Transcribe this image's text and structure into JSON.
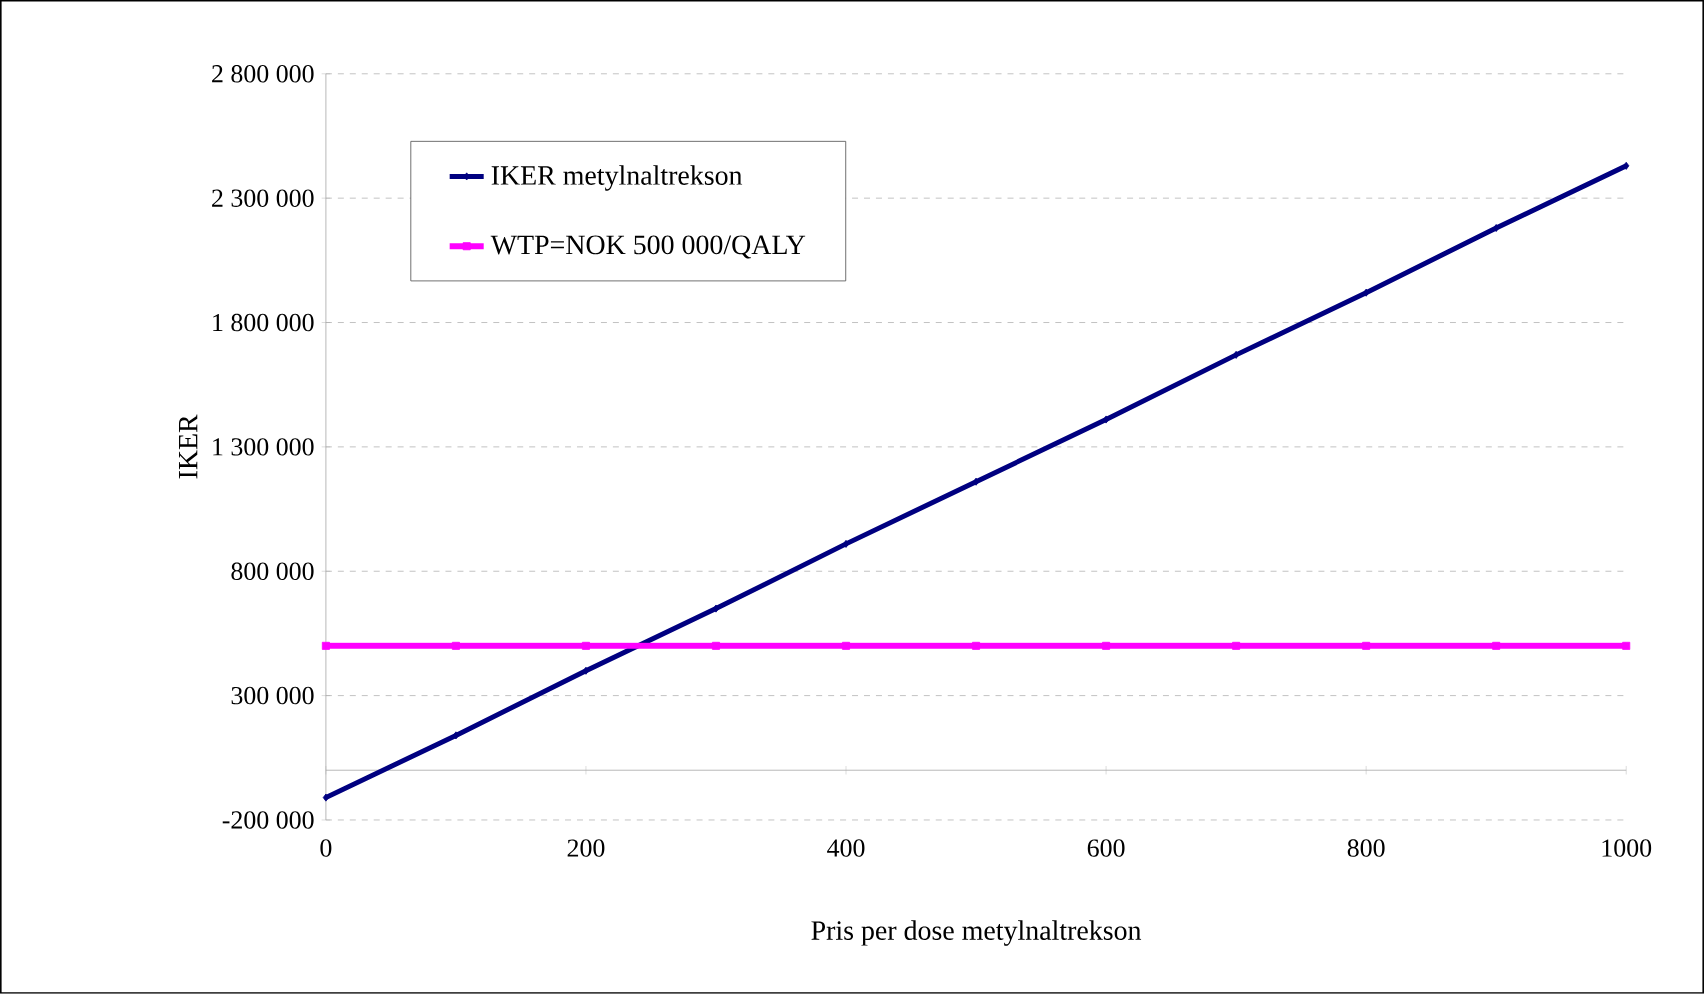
{
  "chart_data": {
    "type": "line",
    "xlabel": "Pris per dose metylnaltrekson",
    "ylabel": "IKER",
    "x": [
      0,
      100,
      200,
      300,
      400,
      500,
      600,
      700,
      800,
      900,
      1000
    ],
    "series": [
      {
        "name": "IKER metylnaltrekson",
        "color": "#000080",
        "marker": "diamond",
        "values": [
          -110000,
          140000,
          400000,
          650000,
          910000,
          1160000,
          1410000,
          1670000,
          1920000,
          2180000,
          2430000
        ]
      },
      {
        "name": "WTP=NOK 500 000/QALY",
        "color": "#ff00ff",
        "marker": "square",
        "values": [
          500000,
          500000,
          500000,
          500000,
          500000,
          500000,
          500000,
          500000,
          500000,
          500000,
          500000
        ]
      }
    ],
    "xlim": [
      0,
      1000
    ],
    "xticks": [
      0,
      200,
      400,
      600,
      800,
      1000
    ],
    "ylim": [
      -200000,
      2800000
    ],
    "yticks": [
      {
        "value": -200000,
        "label": "-200 000"
      },
      {
        "value": 300000,
        "label": "300 000"
      },
      {
        "value": 800000,
        "label": "800 000"
      },
      {
        "value": 1300000,
        "label": "1 300 000"
      },
      {
        "value": 1800000,
        "label": "1 800 000"
      },
      {
        "value": 2300000,
        "label": "2 300 000"
      },
      {
        "value": 2800000,
        "label": "2 800 000"
      }
    ],
    "grid": "y",
    "legend": "top left",
    "line_style": "solid"
  }
}
